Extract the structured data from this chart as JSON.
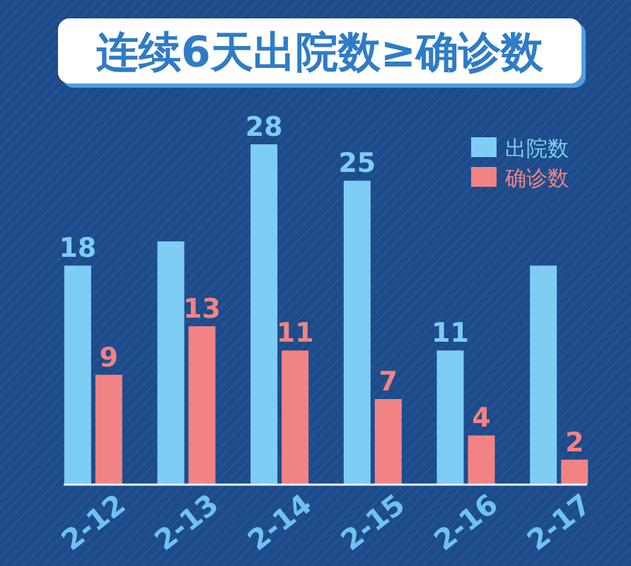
{
  "chart_data": {
    "type": "bar",
    "title": "连续6天出院数≥确诊数",
    "categories": [
      "2-12",
      "2-13",
      "2-14",
      "2-15",
      "2-16",
      "2-17"
    ],
    "series": [
      {
        "name": "出院数",
        "color": "#7dcdf4",
        "values": [
          18,
          20,
          28,
          25,
          11,
          18
        ],
        "value_labels": [
          "18",
          null,
          "28",
          "25",
          "11",
          null
        ]
      },
      {
        "name": "确诊数",
        "color": "#f28385",
        "values": [
          9,
          13,
          11,
          7,
          4,
          2
        ],
        "value_labels": [
          "9",
          "13",
          "11",
          "7",
          "4",
          "2"
        ]
      }
    ],
    "legend": "top right"
  }
}
